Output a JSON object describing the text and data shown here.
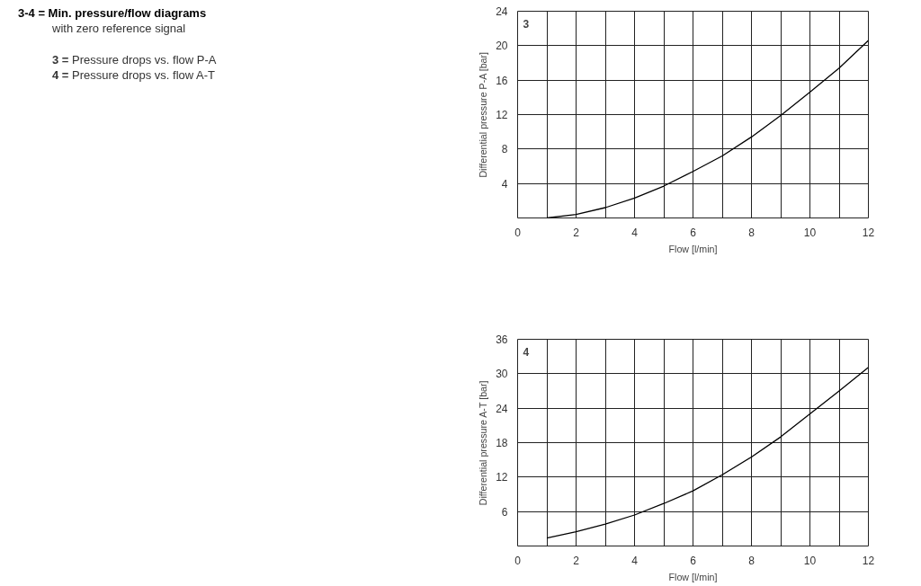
{
  "chart_data": [
    {
      "type": "other",
      "title": "3-4 = Min. pressure/flow diagrams",
      "subtitle": "with zero reference signal",
      "annotations": [
        "3 = Pressure drops vs. flow P-A",
        "4 = Pressure drops vs. flow A-T"
      ]
    },
    {
      "type": "line",
      "annotations": [
        "3"
      ],
      "xlabel": "Flow [l/min]",
      "ylabel": "Differential pressure P-A [bar]",
      "x": [
        1,
        2,
        3,
        4,
        5,
        6,
        7,
        8,
        9,
        10,
        11,
        12
      ],
      "series": [
        {
          "color": "#000000",
          "values": [
            0.0,
            0.4,
            1.2,
            2.3,
            3.7,
            5.4,
            7.2,
            9.4,
            11.9,
            14.6,
            17.4,
            20.6
          ]
        }
      ],
      "xlim": [
        0,
        12
      ],
      "ylim": [
        0,
        24
      ],
      "xticks": [
        0,
        {
          "value": 1,
          "label": null
        },
        2,
        {
          "value": 3,
          "label": null
        },
        4,
        {
          "value": 5,
          "label": null
        },
        6,
        {
          "value": 7,
          "label": null
        },
        8,
        {
          "value": 9,
          "label": null
        },
        10,
        {
          "value": 11,
          "label": null
        },
        12
      ],
      "yticks": [
        4,
        8,
        12,
        16,
        20,
        24
      ],
      "grid": true,
      "line_style": "solid"
    },
    {
      "type": "line",
      "annotations": [
        "4"
      ],
      "xlabel": "Flow [l/min]",
      "ylabel": "Differential pressure A-T [bar]",
      "x": [
        1,
        2,
        3,
        4,
        5,
        6,
        7,
        8,
        9,
        10,
        11,
        12
      ],
      "series": [
        {
          "color": "#000000",
          "values": [
            1.4,
            2.5,
            3.8,
            5.4,
            7.4,
            9.6,
            12.4,
            15.5,
            19.0,
            23.0,
            27.0,
            31.1
          ]
        }
      ],
      "xlim": [
        0,
        12
      ],
      "ylim": [
        0,
        36
      ],
      "xticks": [
        0,
        {
          "value": 1,
          "label": null
        },
        2,
        {
          "value": 3,
          "label": null
        },
        4,
        {
          "value": 5,
          "label": null
        },
        6,
        {
          "value": 7,
          "label": null
        },
        8,
        {
          "value": 9,
          "label": null
        },
        10,
        {
          "value": 11,
          "label": null
        },
        12
      ],
      "yticks": [
        6,
        12,
        18,
        24,
        30,
        36
      ],
      "grid": true,
      "line_style": "solid"
    }
  ]
}
